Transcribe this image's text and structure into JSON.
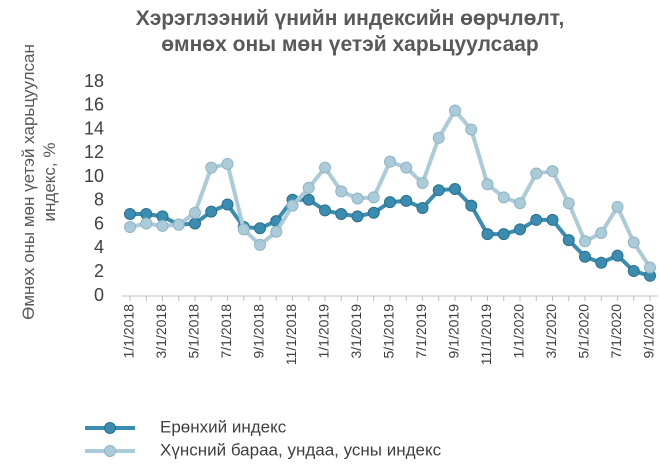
{
  "chart_data": {
    "type": "line",
    "title": "Хэрэглээний үнийн индексийн өөрчлөлт, өмнөх оны мөн үетэй харьцуулсаар",
    "y_label": "Өмнөх оны мөн үетэй харьцуулсан индекс, %",
    "categories": [
      "1/1/2018",
      null,
      "3/1/2018",
      null,
      "5/1/2018",
      null,
      "7/1/2018",
      null,
      "9/1/2018",
      null,
      "11/1/2018",
      null,
      "1/1/2019",
      null,
      "3/1/2019",
      null,
      "5/1/2019",
      null,
      "7/1/2019",
      null,
      "9/1/2019",
      null,
      "11/1/2019",
      null,
      "1/1/2020",
      null,
      "3/1/2020",
      null,
      "5/1/2020",
      null,
      "7/1/2020",
      null,
      "9/1/2020"
    ],
    "series": [
      {
        "name": "Ерөнхий индекс",
        "color": "#3a8db0",
        "marker_edge": "#2b6f8c",
        "values": [
          6.9,
          6.9,
          6.7,
          6.0,
          6.1,
          7.1,
          7.7,
          5.8,
          5.7,
          6.3,
          8.1,
          8.1,
          7.2,
          6.9,
          6.7,
          7.0,
          7.9,
          8.0,
          7.4,
          8.9,
          9.0,
          7.6,
          5.2,
          5.2,
          5.6,
          6.4,
          6.4,
          4.7,
          3.3,
          2.8,
          3.4,
          2.1,
          1.7
        ]
      },
      {
        "name": "Хүнсний бараа, ундаа, усны индекс",
        "color": "#abcbd8",
        "marker_edge": "#8fb4c4",
        "values": [
          5.8,
          6.1,
          5.9,
          6.0,
          7.0,
          10.8,
          11.1,
          5.6,
          4.3,
          5.4,
          7.6,
          9.1,
          10.8,
          8.8,
          8.2,
          8.3,
          11.3,
          10.8,
          9.5,
          13.3,
          15.6,
          14.0,
          9.4,
          8.3,
          7.8,
          10.3,
          10.5,
          7.8,
          4.6,
          5.3,
          7.5,
          4.5,
          2.4
        ]
      }
    ],
    "ylim": [
      0,
      18
    ],
    "yticks": [
      0,
      2,
      4,
      6,
      8,
      10,
      12,
      14,
      16,
      18
    ],
    "grid": false,
    "legend": "bottom-left"
  }
}
